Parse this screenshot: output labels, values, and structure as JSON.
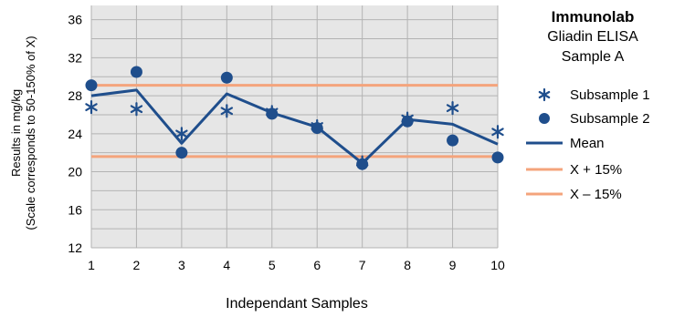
{
  "chart_data": {
    "type": "line",
    "title": "Immunolab",
    "subtitle_lines": [
      "Gliadin ELISA",
      "Sample A"
    ],
    "xlabel": "Independant Samples",
    "ylabel_lines": [
      "Results in mg/kg",
      "(Scale corresponds to 50-150% of X)"
    ],
    "x": [
      1,
      2,
      3,
      4,
      5,
      6,
      7,
      8,
      9,
      10
    ],
    "x_tick_labels": [
      "1",
      "2",
      "3",
      "4",
      "5",
      "6",
      "7",
      "8",
      "9",
      "10"
    ],
    "y_ticks": [
      12,
      16,
      20,
      24,
      28,
      32,
      36
    ],
    "ylim": [
      12,
      37.5
    ],
    "grid": true,
    "legend_position": "right",
    "series": [
      {
        "name": "Subsample 1",
        "kind": "marker-star",
        "color": "#1f4e8c",
        "values": [
          26.8,
          26.6,
          24.0,
          26.4,
          26.3,
          24.8,
          21.0,
          25.6,
          26.7,
          24.2
        ]
      },
      {
        "name": "Subsample 2",
        "kind": "marker-circle",
        "color": "#1f4e8c",
        "values": [
          29.1,
          30.5,
          22.0,
          29.9,
          26.1,
          24.6,
          20.8,
          25.3,
          23.3,
          21.5
        ]
      },
      {
        "name": "Mean",
        "kind": "line",
        "color": "#1f4e8c",
        "values": [
          28.0,
          28.6,
          23.0,
          28.2,
          26.2,
          24.7,
          20.9,
          25.5,
          25.0,
          22.9
        ]
      },
      {
        "name": "X + 15%",
        "kind": "hline",
        "color": "#f4a47c",
        "value": 29.1
      },
      {
        "name": "X – 15%",
        "kind": "hline",
        "color": "#f4a47c",
        "value": 21.6
      }
    ]
  }
}
